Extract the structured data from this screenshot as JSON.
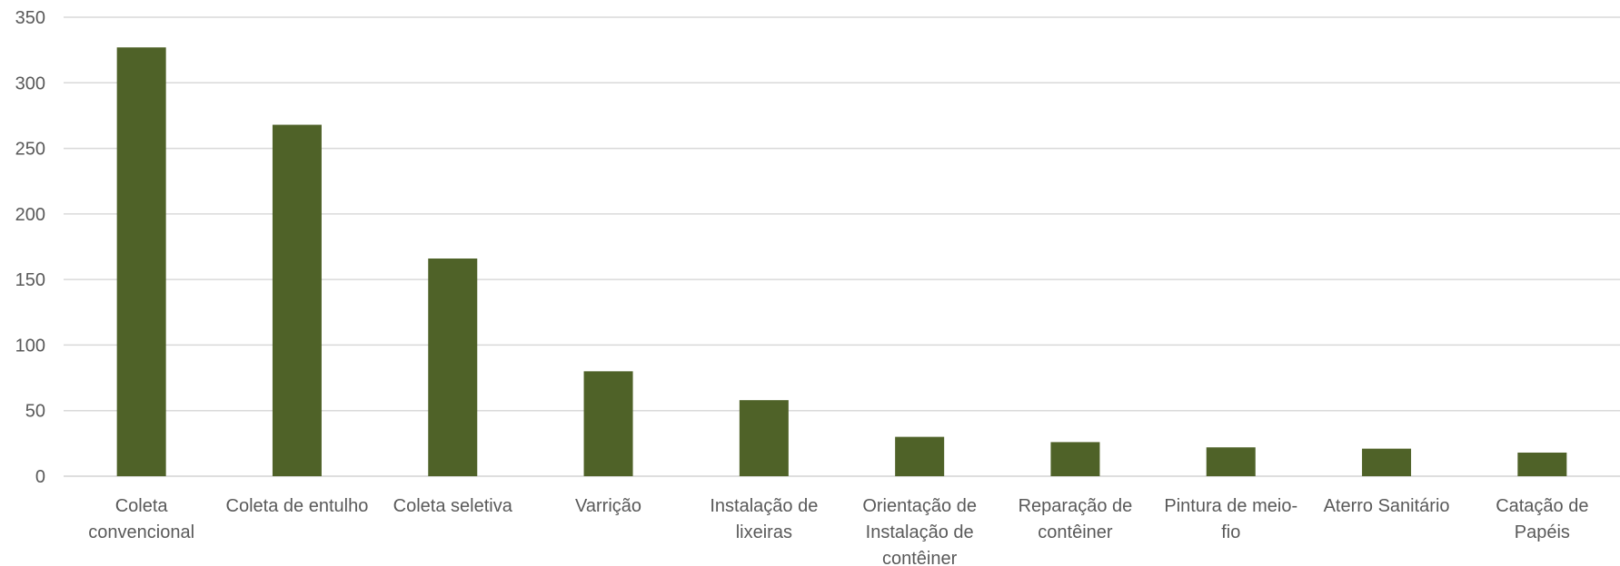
{
  "chart_data": {
    "type": "bar",
    "categories": [
      "Coleta convencional",
      "Coleta de entulho",
      "Coleta seletiva",
      "Varrição",
      "Instalação de lixeiras",
      "Orientação de Instalação de contêiner",
      "Reparação de contêiner",
      "Pintura de meio-fio",
      "Aterro Sanitário",
      "Catação de Papéis"
    ],
    "values": [
      327,
      268,
      166,
      80,
      58,
      30,
      26,
      22,
      21,
      18
    ],
    "color": "#4f6228",
    "ylim": [
      0,
      350
    ],
    "yticks": [
      0,
      50,
      100,
      150,
      200,
      250,
      300,
      350
    ],
    "grid": true
  }
}
